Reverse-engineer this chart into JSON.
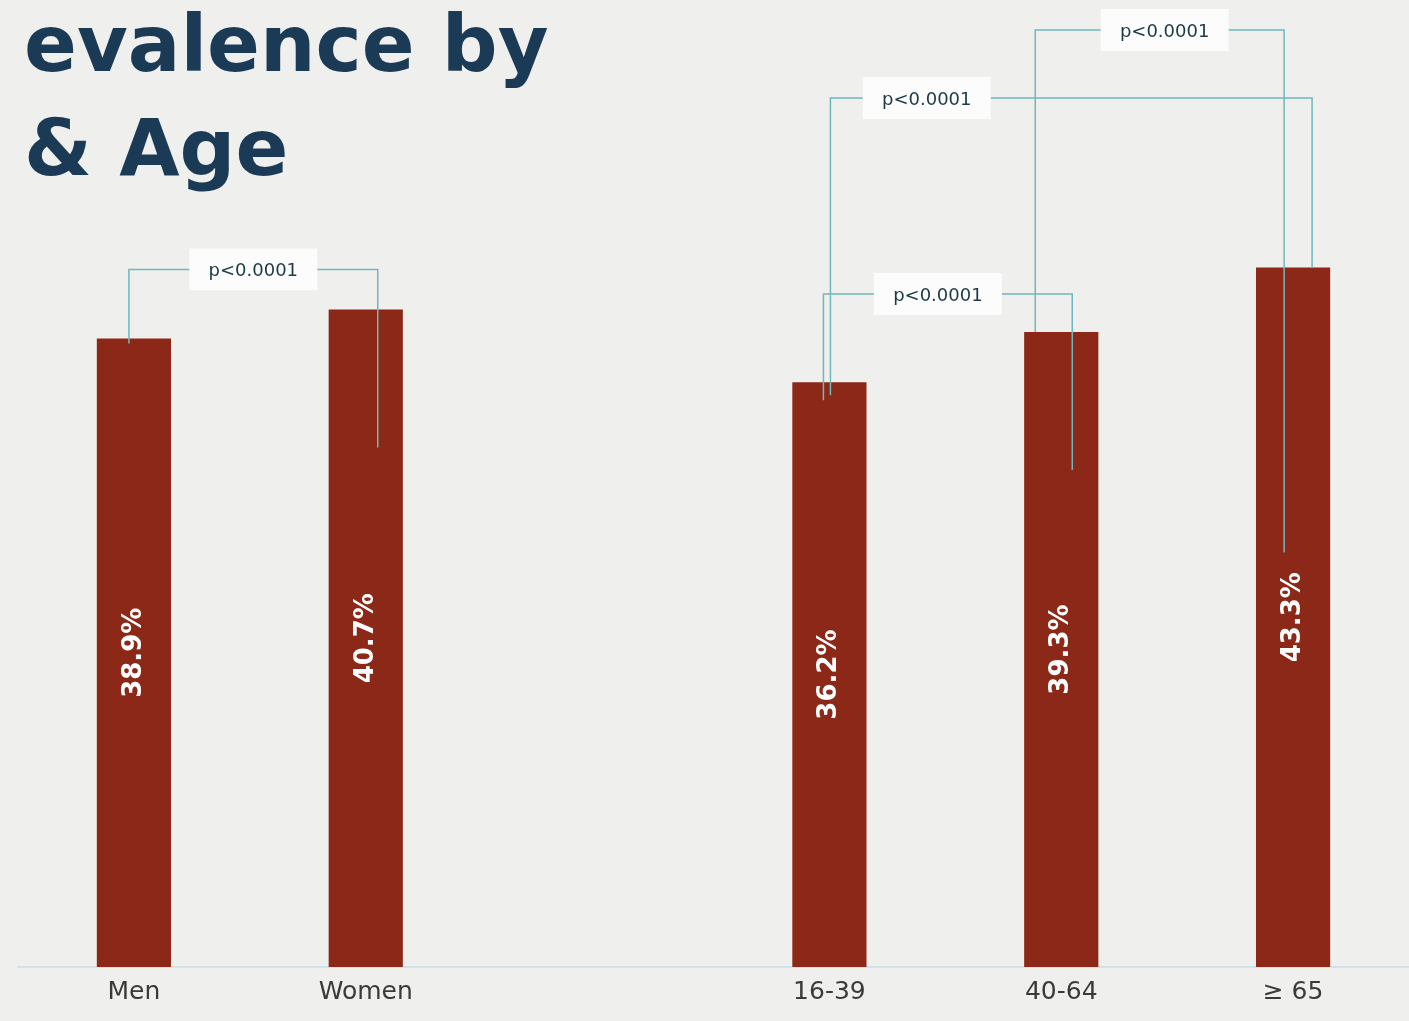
{
  "chart_data": {
    "type": "bar",
    "title": "evalence by\n& Age",
    "categories": [
      "Men",
      "Women",
      null,
      "16-39",
      "40-64",
      "≥ 65"
    ],
    "values": [
      38.9,
      40.7,
      null,
      36.2,
      39.3,
      43.3
    ],
    "color": "#8b2817",
    "value_labels": [
      "38.9%",
      "40.7%",
      null,
      "36.2%",
      "39.3%",
      "43.3%"
    ],
    "tick_labels": "x",
    "grid": false,
    "legend": false,
    "annotations": [
      "p<0.0001",
      "p<0.0001",
      "p<0.0001",
      "p<0.0001"
    ]
  }
}
